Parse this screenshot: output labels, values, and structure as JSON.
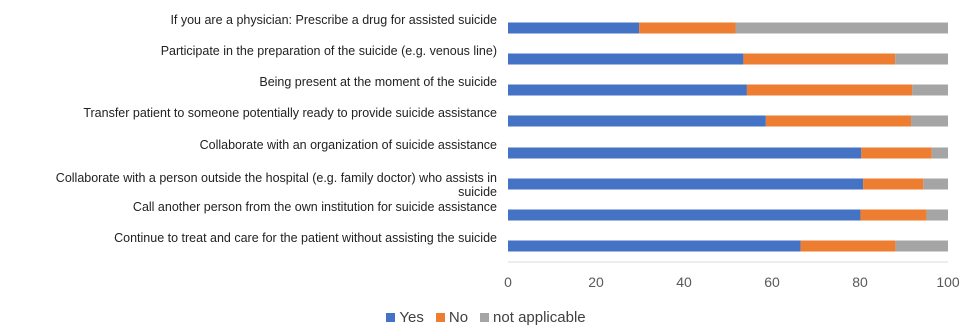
{
  "chart_data": {
    "type": "bar",
    "orientation": "horizontal",
    "stacked": true,
    "categories": [
      "If you are a physician: Prescribe a drug for assisted suicide",
      "Participate in the preparation of the suicide (e.g. venous line)",
      "Being present at the moment of the suicide",
      "Transfer patient to someone potentially ready to provide suicide assistance",
      "Collaborate with an organization of suicide assistance",
      "Collaborate with a person outside  the hospital (e.g. family doctor) who assists in suicide",
      "Call another person from the own institution for suicide assistance",
      "Continue to treat and care for the patient without assisting the suicide"
    ],
    "series": [
      {
        "name": "Yes",
        "color": "#4472C4",
        "values": [
          29.8,
          53.5,
          54.3,
          58.6,
          80.3,
          80.7,
          80.1,
          66.5
        ]
      },
      {
        "name": "No",
        "color": "#ED7D31",
        "values": [
          21.9,
          34.5,
          37.6,
          33.0,
          16.0,
          13.7,
          15.0,
          21.6
        ]
      },
      {
        "name": "not applicable",
        "color": "#A5A5A5",
        "values": [
          48.3,
          12.0,
          8.1,
          8.4,
          3.7,
          5.6,
          4.9,
          11.9
        ]
      }
    ],
    "x_ticks": [
      "0",
      "20",
      "40",
      "60",
      "80",
      "100"
    ],
    "xlim": [
      0,
      100
    ],
    "grid": false,
    "legend": "bottom-center"
  }
}
